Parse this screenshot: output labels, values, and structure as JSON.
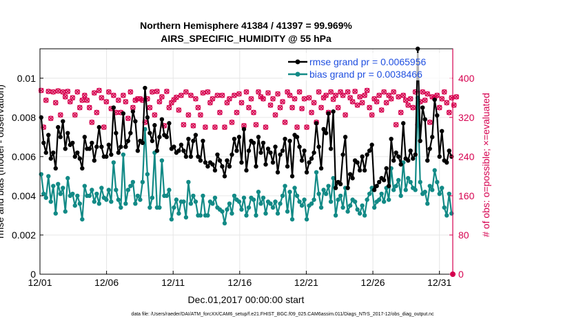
{
  "chart_data": {
    "type": "line",
    "title": "Northern Hemisphere 41384 / 41397 = 99.969%",
    "subtitle": "AIRS_SPECIFIC_HUMIDITY @ 55 hPa",
    "xlabel": "Dec.01,2017 00:00:00 start",
    "ylabel": "rmse and bias (model - observation)",
    "y2label": "# of obs: o=possible; ×=evaluated",
    "footnote": "data file: /Users/raeder/DAI/ATM_forcXX/CAM6_setup/f.e21.FHIST_BGC.f09_025.CAM6assim.011/Diags_NTrS_2017-12/obs_diag_output.nc",
    "xlim": [
      0,
      31
    ],
    "ylim": [
      0,
      0.0115
    ],
    "y2lim": [
      0,
      460
    ],
    "x_ticks": [
      {
        "value": 0,
        "label": "12/01"
      },
      {
        "value": 5,
        "label": "12/06"
      },
      {
        "value": 10,
        "label": "12/11"
      },
      {
        "value": 15,
        "label": "12/16"
      },
      {
        "value": 20,
        "label": "12/21"
      },
      {
        "value": 25,
        "label": "12/26"
      },
      {
        "value": 30,
        "label": "12/31"
      }
    ],
    "y_ticks": [
      {
        "value": 0,
        "label": "0"
      },
      {
        "value": 0.002,
        "label": "0.002"
      },
      {
        "value": 0.004,
        "label": "0.004"
      },
      {
        "value": 0.006,
        "label": "0.006"
      },
      {
        "value": 0.008,
        "label": "0.008"
      },
      {
        "value": 0.01,
        "label": "0.01"
      }
    ],
    "y2_ticks": [
      {
        "value": 0,
        "label": "0"
      },
      {
        "value": 80,
        "label": "80"
      },
      {
        "value": 160,
        "label": "160"
      },
      {
        "value": 240,
        "label": "240"
      },
      {
        "value": 320,
        "label": "320"
      },
      {
        "value": 400,
        "label": "400"
      }
    ],
    "legend": [
      {
        "label": "rmse grand pr = 0.0065956",
        "color": "#000000"
      },
      {
        "label": "bias grand pr = 0.0038466",
        "color": "#128a86"
      }
    ],
    "colors": {
      "rmse": "#000000",
      "bias": "#128a86",
      "obs": "#d6004f",
      "grid": "#e6e6e6"
    },
    "series": [
      {
        "name": "rmse",
        "values": [
          0.008,
          0.0067,
          0.0062,
          0.0071,
          0.0059,
          0.0062,
          0.0054,
          0.0075,
          0.007,
          0.0078,
          0.0064,
          0.0072,
          0.0066,
          0.0067,
          0.006,
          0.0062,
          0.0059,
          0.0054,
          0.007,
          0.0064,
          0.0064,
          0.0067,
          0.0058,
          0.0065,
          0.0075,
          0.0065,
          0.006,
          0.006,
          0.0066,
          0.0061,
          0.0085,
          0.0072,
          0.0062,
          0.0065,
          0.0082,
          0.0065,
          0.0068,
          0.0072,
          0.0083,
          0.0078,
          0.0063,
          0.0068,
          0.0067,
          0.0095,
          0.008,
          0.0072,
          0.0068,
          0.0076,
          0.0063,
          0.007,
          0.0079,
          0.0071,
          0.007,
          0.0077,
          0.0064,
          0.0065,
          0.0062,
          0.0063,
          0.0066,
          0.0063,
          0.006,
          0.0069,
          0.006,
          0.0068,
          0.0071,
          0.006,
          0.0058,
          0.0068,
          0.0057,
          0.0055,
          0.0057,
          0.0056,
          0.0053,
          0.0061,
          0.0058,
          0.0055,
          0.005,
          0.0058,
          0.0055,
          0.0061,
          0.0069,
          0.0063,
          0.007,
          0.0057,
          0.0074,
          0.0053,
          0.0063,
          0.0068,
          0.0067,
          0.0055,
          0.007,
          0.0062,
          0.0067,
          0.0056,
          0.0064,
          0.0062,
          0.0057,
          0.0065,
          0.0052,
          0.0061,
          0.0063,
          0.0069,
          0.0055,
          0.0068,
          0.005,
          0.0071,
          0.007,
          0.0065,
          0.0058,
          0.0063,
          0.0052,
          0.0057,
          0.0059,
          0.0062,
          0.0077,
          0.0065,
          0.0054,
          0.0074,
          0.0072,
          0.0082,
          0.0064,
          0.0083,
          0.0044,
          0.0047,
          0.0046,
          0.0061,
          0.007,
          0.0044,
          0.0051,
          0.0049,
          0.0058,
          0.0057,
          0.0053,
          0.006,
          0.0053,
          0.0061,
          0.0063,
          0.0066,
          0.0043,
          0.0045,
          0.0047,
          0.0049,
          0.0048,
          0.0054,
          0.0045,
          0.0069,
          0.0058,
          0.0062,
          0.006,
          0.0056,
          0.0077,
          0.0059,
          0.0058,
          0.0063,
          0.0059,
          0.0061,
          0.0115,
          0.0068,
          0.0085,
          0.0079,
          0.0058,
          0.0064,
          0.007,
          0.0089,
          0.0081,
          0.006,
          0.0073,
          0.0058,
          0.0057,
          0.0063,
          0.006
        ]
      },
      {
        "name": "bias",
        "values": [
          0.0051,
          0.0041,
          0.0039,
          0.005,
          0.0037,
          0.0045,
          0.0031,
          0.0046,
          0.0041,
          0.0044,
          0.0032,
          0.0049,
          0.004,
          0.0041,
          0.0035,
          0.004,
          0.0036,
          0.0028,
          0.0045,
          0.004,
          0.004,
          0.0043,
          0.0037,
          0.0041,
          0.0036,
          0.0044,
          0.0039,
          0.0038,
          0.0043,
          0.0037,
          0.0057,
          0.0043,
          0.0038,
          0.0034,
          0.0061,
          0.0036,
          0.0043,
          0.0045,
          0.0047,
          0.0036,
          0.004,
          0.0038,
          0.0047,
          0.0074,
          0.0051,
          0.0034,
          0.0039,
          0.0062,
          0.0034,
          0.0034,
          0.0058,
          0.004,
          0.004,
          0.0043,
          0.0028,
          0.0034,
          0.0038,
          0.0031,
          0.0037,
          0.0037,
          0.0029,
          0.0047,
          0.0036,
          0.004,
          0.0037,
          0.003,
          0.003,
          0.004,
          0.003,
          0.003,
          0.0037,
          0.0036,
          0.0039,
          0.0034,
          0.0033,
          0.0032,
          0.0026,
          0.0033,
          0.0036,
          0.0031,
          0.004,
          0.0038,
          0.0037,
          0.0033,
          0.0039,
          0.003,
          0.0034,
          0.0039,
          0.0038,
          0.003,
          0.0042,
          0.0036,
          0.0039,
          0.0031,
          0.0037,
          0.0036,
          0.0034,
          0.0037,
          0.0031,
          0.0036,
          0.004,
          0.0045,
          0.0032,
          0.0042,
          0.0028,
          0.0044,
          0.004,
          0.0037,
          0.0035,
          0.0038,
          0.0028,
          0.0035,
          0.0036,
          0.0038,
          0.0052,
          0.0041,
          0.0034,
          0.0043,
          0.0041,
          0.0045,
          0.0037,
          0.0049,
          0.003,
          0.0038,
          0.004,
          0.0034,
          0.0044,
          0.0032,
          0.0035,
          0.0038,
          0.0037,
          0.0033,
          0.0031,
          0.0035,
          0.003,
          0.0038,
          0.0041,
          0.0044,
          0.0034,
          0.0037,
          0.0038,
          0.0041,
          0.0037,
          0.0044,
          0.0038,
          0.0054,
          0.0043,
          0.0045,
          0.0048,
          0.004,
          0.0057,
          0.0043,
          0.0049,
          0.0047,
          0.0044,
          0.0043,
          0.009,
          0.0047,
          0.0041,
          0.0042,
          0.0036,
          0.0045,
          0.0043,
          0.0053,
          0.0047,
          0.0041,
          0.0044,
          0.0034,
          0.003,
          0.0041,
          0.0031
        ]
      },
      {
        "name": "obs_possible",
        "values": [
          375,
          300,
          355,
          373,
          318,
          372,
          350,
          374,
          325,
          372,
          362,
          373,
          352,
          360,
          325,
          372,
          340,
          355,
          365,
          355,
          340,
          310,
          370,
          330,
          375,
          360,
          300,
          352,
          372,
          338,
          365,
          330,
          355,
          330,
          365,
          352,
          318,
          372,
          340,
          355,
          358,
          358,
          355,
          310,
          358,
          340,
          372,
          325,
          373,
          352,
          362,
          303,
          373,
          340,
          350,
          356,
          361,
          335,
          365,
          305,
          372,
          325,
          365,
          303,
          358,
          340,
          325,
          370,
          300,
          372,
          350,
          358,
          300,
          365,
          330,
          365,
          300,
          350,
          358,
          310,
          365,
          330,
          368,
          350,
          303,
          372,
          340,
          358,
          330,
          305,
          372,
          362,
          358,
          300,
          370,
          345,
          358,
          325,
          368,
          340,
          352,
          310,
          372,
          365,
          340,
          358,
          300,
          372,
          338,
          358,
          300,
          360,
          330,
          350,
          310,
          372,
          340,
          360,
          365,
          330,
          372,
          357,
          365,
          340,
          372,
          365,
          325,
          372,
          360,
          352,
          373,
          345,
          362,
          350,
          365,
          375,
          340,
          325,
          358,
          352,
          365,
          335,
          372,
          350,
          365,
          358,
          372,
          305,
          362,
          330,
          365,
          355,
          345,
          358,
          340,
          372,
          305,
          352,
          372,
          355,
          368,
          310,
          362,
          360,
          365,
          340,
          358,
          372,
          350,
          330,
          360,
          345,
          362
        ]
      },
      {
        "name": "obs_evaluated",
        "values": [
          375,
          300,
          355,
          373,
          318,
          372,
          350,
          374,
          325,
          372,
          362,
          373,
          352,
          360,
          325,
          372,
          340,
          355,
          365,
          355,
          340,
          310,
          370,
          330,
          375,
          360,
          300,
          352,
          372,
          338,
          365,
          330,
          355,
          330,
          365,
          352,
          318,
          372,
          340,
          355,
          358,
          358,
          355,
          310,
          358,
          340,
          372,
          325,
          373,
          352,
          362,
          303,
          373,
          340,
          350,
          356,
          361,
          335,
          365,
          305,
          372,
          325,
          365,
          303,
          358,
          340,
          325,
          370,
          300,
          372,
          350,
          358,
          300,
          365,
          330,
          365,
          300,
          350,
          358,
          310,
          365,
          330,
          368,
          350,
          303,
          372,
          340,
          358,
          330,
          305,
          372,
          362,
          358,
          300,
          370,
          345,
          358,
          325,
          368,
          340,
          352,
          310,
          372,
          365,
          340,
          358,
          300,
          372,
          338,
          358,
          300,
          360,
          330,
          350,
          310,
          372,
          340,
          360,
          365,
          330,
          372,
          357,
          365,
          340,
          372,
          365,
          325,
          372,
          360,
          352,
          373,
          345,
          362,
          350,
          365,
          375,
          340,
          325,
          358,
          352,
          365,
          335,
          372,
          350,
          365,
          358,
          372,
          305,
          362,
          330,
          365,
          355,
          345,
          358,
          340,
          372,
          305,
          352,
          372,
          355,
          368,
          310,
          362,
          360,
          365,
          340,
          358,
          372,
          350,
          330,
          360,
          345,
          362
        ]
      }
    ]
  }
}
